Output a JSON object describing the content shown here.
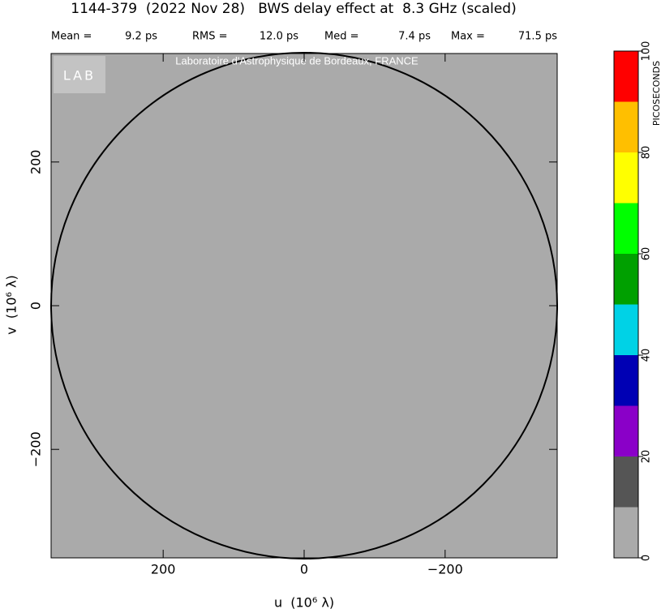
{
  "chart_data": {
    "type": "image",
    "title": "1144-379  (2022 Nov 28)   BWS delay effect at  8.3 GHz (scaled)",
    "stats": {
      "names": [
        "Mean =",
        "RMS =",
        "Med =",
        "Max ="
      ],
      "values": [
        9.2,
        12.0,
        7.4,
        71.5
      ],
      "value_labels": [
        "9.2 ps",
        "12.0 ps",
        "7.4 ps",
        "71.5 ps"
      ]
    },
    "watermark": "Laboratoire d'Astrophysique de Bordeaux, FRANCE",
    "logo": "LAB",
    "xlabel": "u  (10⁶ λ)",
    "ylabel": "v  (10⁶ λ)",
    "xlim": [
      359,
      -359
    ],
    "ylim": [
      -351,
      351
    ],
    "xticks": [
      200,
      0,
      {
        "value": -200,
        "label": "−200"
      }
    ],
    "yticks": [
      {
        "value": -200,
        "label": "−200"
      },
      0,
      200
    ],
    "colorbar": {
      "label": "PICOSECONDS",
      "levels": [
        0,
        10,
        20,
        30,
        40,
        50,
        60,
        70,
        80,
        90,
        100
      ],
      "colors": [
        "#aaaaaa",
        "#555555",
        "#8a00c8",
        "#0000b4",
        "#00d2e6",
        "#00a000",
        "#00ff00",
        "#ffff00",
        "#ffbf00",
        "#ff0000"
      ],
      "ticks": [
        0,
        20,
        40,
        60,
        80,
        100
      ]
    }
  }
}
